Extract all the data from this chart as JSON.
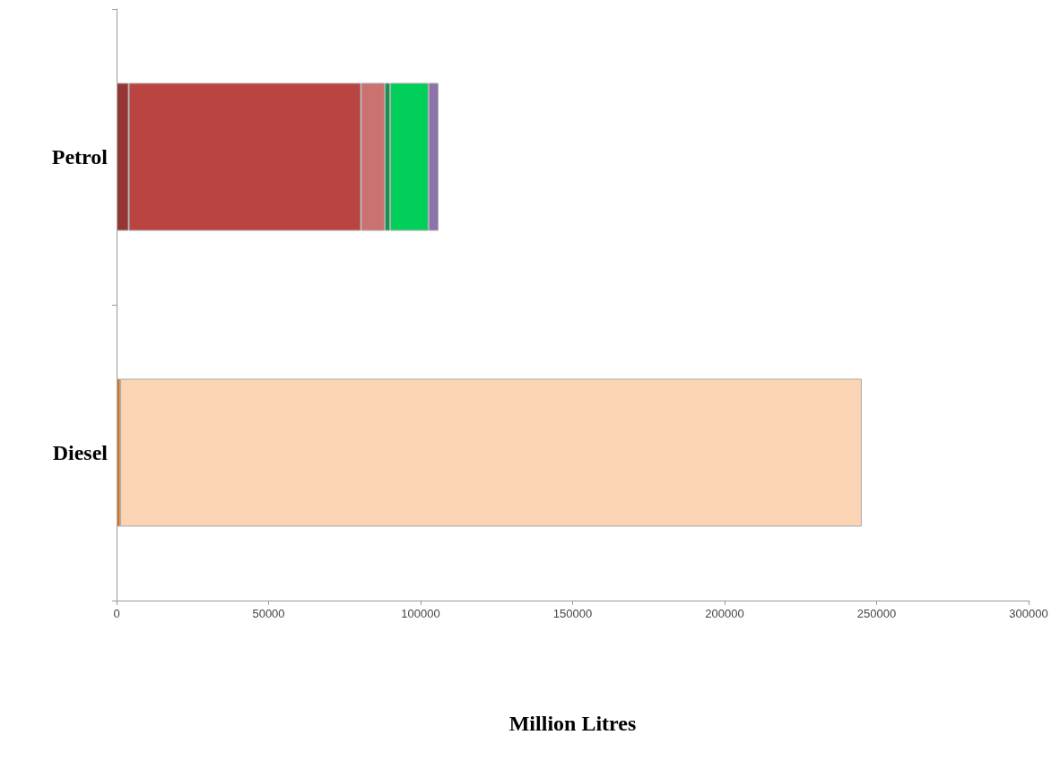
{
  "chart_data": {
    "type": "bar",
    "orientation": "horizontal",
    "stacked": true,
    "xlabel": "Million Litres",
    "categories": [
      "Petrol",
      "Diesel"
    ],
    "series": [
      {
        "color": "#943634",
        "values": [
          4000,
          null
        ]
      },
      {
        "color": "#b94441",
        "values": [
          76400,
          null
        ]
      },
      {
        "color": "#cb7170",
        "values": [
          7800,
          null
        ]
      },
      {
        "color": "#17934a",
        "values": [
          1800,
          null
        ]
      },
      {
        "color": "#00d05a",
        "values": [
          12600,
          null
        ]
      },
      {
        "color": "#8c73ab",
        "values": [
          3300,
          null
        ]
      },
      {
        "color": "#e46c0a",
        "values": [
          null,
          1200
        ]
      },
      {
        "color": "#fbd4b4",
        "values": [
          null,
          243900
        ]
      }
    ],
    "xlim": [
      0,
      300000
    ],
    "xticks": [
      0,
      50000,
      100000,
      150000,
      200000,
      250000,
      300000
    ]
  }
}
